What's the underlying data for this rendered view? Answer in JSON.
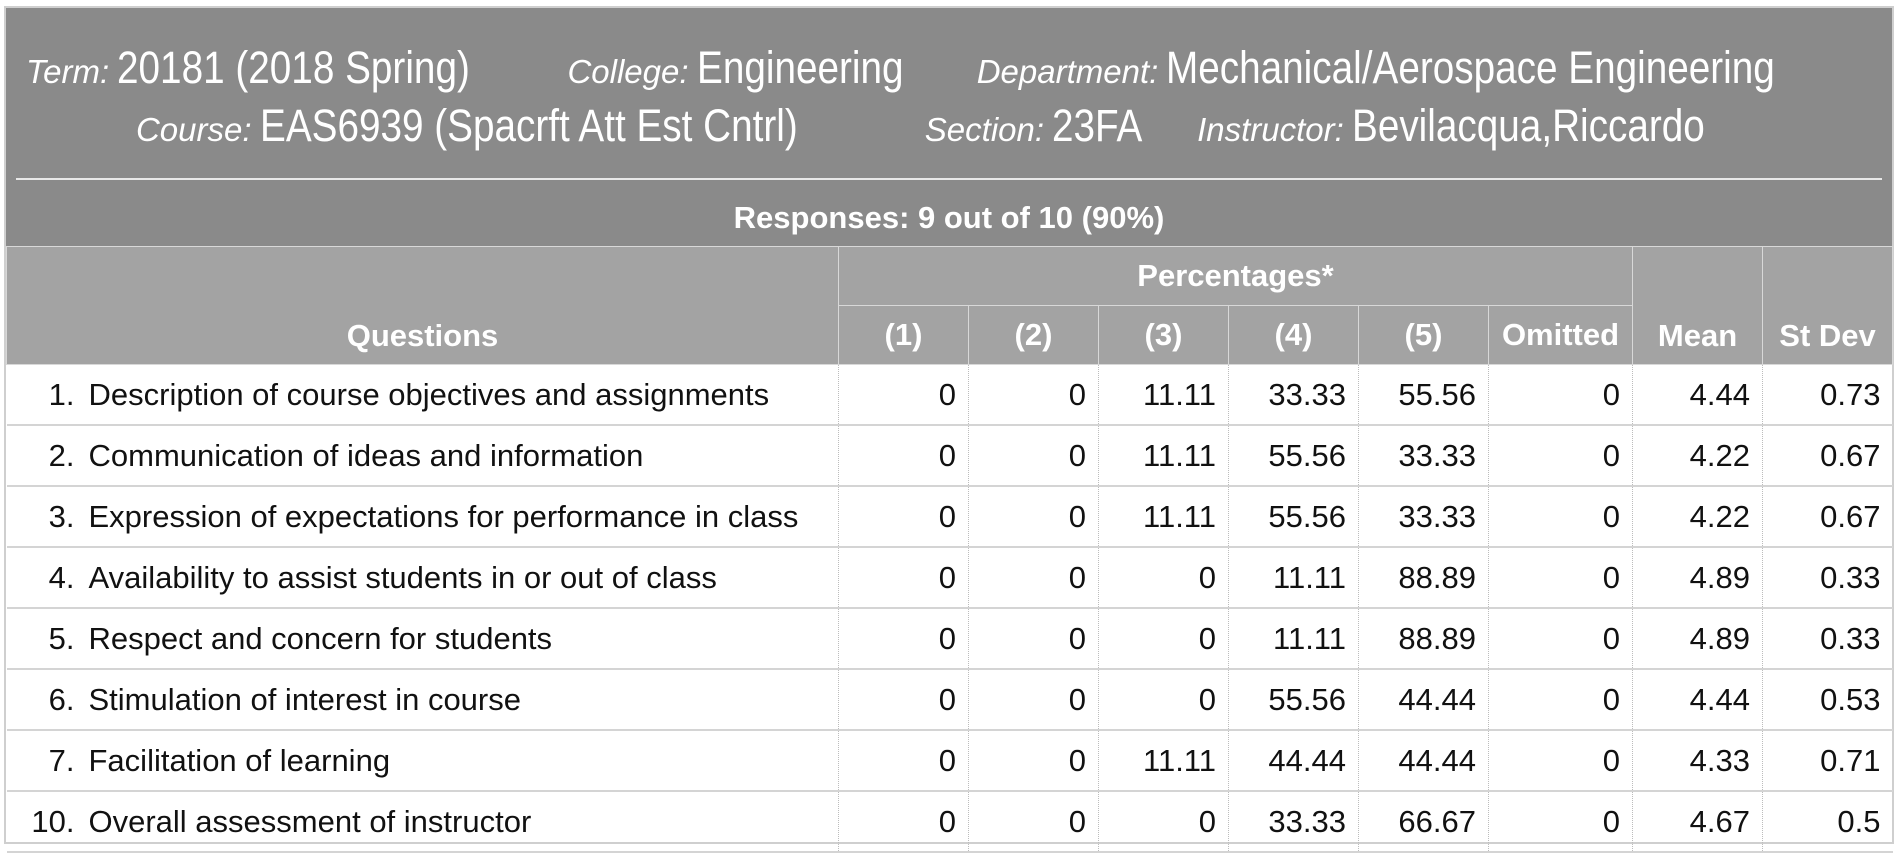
{
  "header": {
    "term_label": "Term:",
    "term_value": "20181 (2018 Spring)",
    "college_label": "College:",
    "college_value": "Engineering",
    "department_label": "Department:",
    "department_value": "Mechanical/Aerospace Engineering",
    "course_label": "Course:",
    "course_value": "EAS6939 (Spacrft Att Est Cntrl)",
    "section_label": "Section:",
    "section_value": "23FA",
    "instructor_label": "Instructor:",
    "instructor_value": "Bevilacqua,Riccardo",
    "responses": "Responses: 9 out of 10 (90%)"
  },
  "table": {
    "questions_header": "Questions",
    "percentages_header": "Percentages*",
    "columns": [
      "(1)",
      "(2)",
      "(3)",
      "(4)",
      "(5)",
      "Omitted"
    ],
    "mean_header": "Mean",
    "stdev_header": "St Dev",
    "rows": [
      {
        "num": "1.",
        "question": "Description of course objectives and assignments",
        "c1": "0",
        "c2": "0",
        "c3": "11.11",
        "c4": "33.33",
        "c5": "55.56",
        "omitted": "0",
        "mean": "4.44",
        "stdev": "0.73"
      },
      {
        "num": "2.",
        "question": "Communication of ideas and information",
        "c1": "0",
        "c2": "0",
        "c3": "11.11",
        "c4": "55.56",
        "c5": "33.33",
        "omitted": "0",
        "mean": "4.22",
        "stdev": "0.67"
      },
      {
        "num": "3.",
        "question": "Expression of expectations for performance in class",
        "c1": "0",
        "c2": "0",
        "c3": "11.11",
        "c4": "55.56",
        "c5": "33.33",
        "omitted": "0",
        "mean": "4.22",
        "stdev": "0.67"
      },
      {
        "num": "4.",
        "question": "Availability to assist students in or out of class",
        "c1": "0",
        "c2": "0",
        "c3": "0",
        "c4": "11.11",
        "c5": "88.89",
        "omitted": "0",
        "mean": "4.89",
        "stdev": "0.33"
      },
      {
        "num": "5.",
        "question": "Respect and concern for students",
        "c1": "0",
        "c2": "0",
        "c3": "0",
        "c4": "11.11",
        "c5": "88.89",
        "omitted": "0",
        "mean": "4.89",
        "stdev": "0.33"
      },
      {
        "num": "6.",
        "question": "Stimulation of interest in course",
        "c1": "0",
        "c2": "0",
        "c3": "0",
        "c4": "55.56",
        "c5": "44.44",
        "omitted": "0",
        "mean": "4.44",
        "stdev": "0.53"
      },
      {
        "num": "7.",
        "question": "Facilitation of learning",
        "c1": "0",
        "c2": "0",
        "c3": "11.11",
        "c4": "44.44",
        "c5": "44.44",
        "omitted": "0",
        "mean": "4.33",
        "stdev": "0.71"
      },
      {
        "num": "10.",
        "question": "Overall assessment of instructor",
        "c1": "0",
        "c2": "0",
        "c3": "0",
        "c4": "33.33",
        "c5": "66.67",
        "omitted": "0",
        "mean": "4.67",
        "stdev": "0.5"
      }
    ]
  }
}
